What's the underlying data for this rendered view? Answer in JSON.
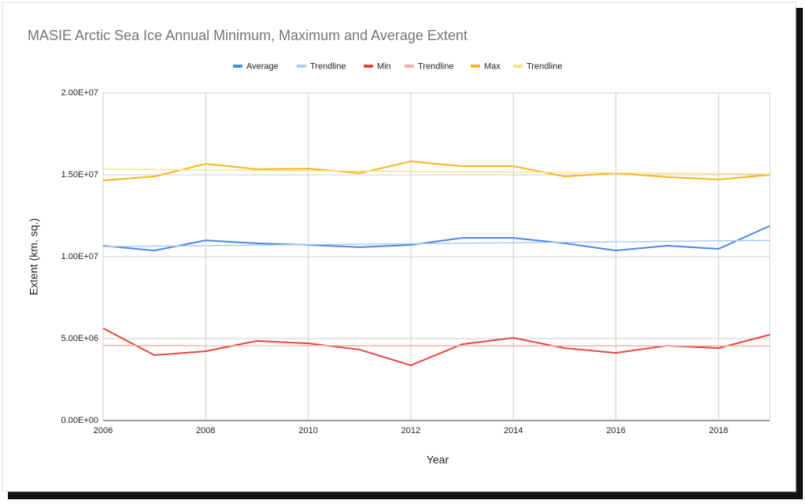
{
  "chart_data": {
    "type": "line",
    "title": "MASIE Arctic Sea Ice Annual Minimum, Maximum and Average Extent",
    "x_label": "Year",
    "y_label": "Extent (km. sq.)",
    "x": [
      2006,
      2007,
      2008,
      2009,
      2010,
      2011,
      2012,
      2013,
      2014,
      2015,
      2016,
      2017,
      2018,
      2019
    ],
    "xlim": [
      2006,
      2019
    ],
    "xticks": [
      2006,
      2008,
      2010,
      2012,
      2014,
      2016,
      2018
    ],
    "ylim": [
      0,
      20000000
    ],
    "yticks": [
      {
        "value": 0,
        "label": "0.00E+00"
      },
      {
        "value": 5000000,
        "label": "5.00E+06"
      },
      {
        "value": 10000000,
        "label": "1.00E+07"
      },
      {
        "value": 15000000,
        "label": "1.50E+07"
      },
      {
        "value": 20000000,
        "label": "2.00E+07"
      }
    ],
    "grid": true,
    "legend": "top",
    "series": [
      {
        "name": "Average",
        "color": "#4a86e8",
        "values": [
          10670000,
          10380000,
          11000000,
          10820000,
          10720000,
          10580000,
          10720000,
          11150000,
          11150000,
          10820000,
          10380000,
          10670000,
          10480000,
          11880000
        ]
      },
      {
        "name": "Trendline",
        "color": "#aecbfa",
        "x": [
          2006,
          2019
        ],
        "values": [
          10620000,
          11000000
        ]
      },
      {
        "name": "Min",
        "color": "#e6463c",
        "values": [
          5630000,
          3990000,
          4230000,
          4860000,
          4710000,
          4330000,
          3370000,
          4660000,
          5050000,
          4420000,
          4130000,
          4570000,
          4420000,
          5240000
        ]
      },
      {
        "name": "Trendline",
        "color": "#f4b0ab",
        "x": [
          2006,
          2019
        ],
        "values": [
          4580000,
          4550000
        ]
      },
      {
        "name": "Max",
        "color": "#f6b619",
        "values": [
          14660000,
          14900000,
          15670000,
          15340000,
          15380000,
          15100000,
          15820000,
          15530000,
          15530000,
          14900000,
          15100000,
          14860000,
          14710000,
          15000000
        ]
      },
      {
        "name": "Trendline",
        "color": "#fbe38a",
        "x": [
          2006,
          2019
        ],
        "values": [
          15340000,
          15050000
        ]
      }
    ]
  }
}
